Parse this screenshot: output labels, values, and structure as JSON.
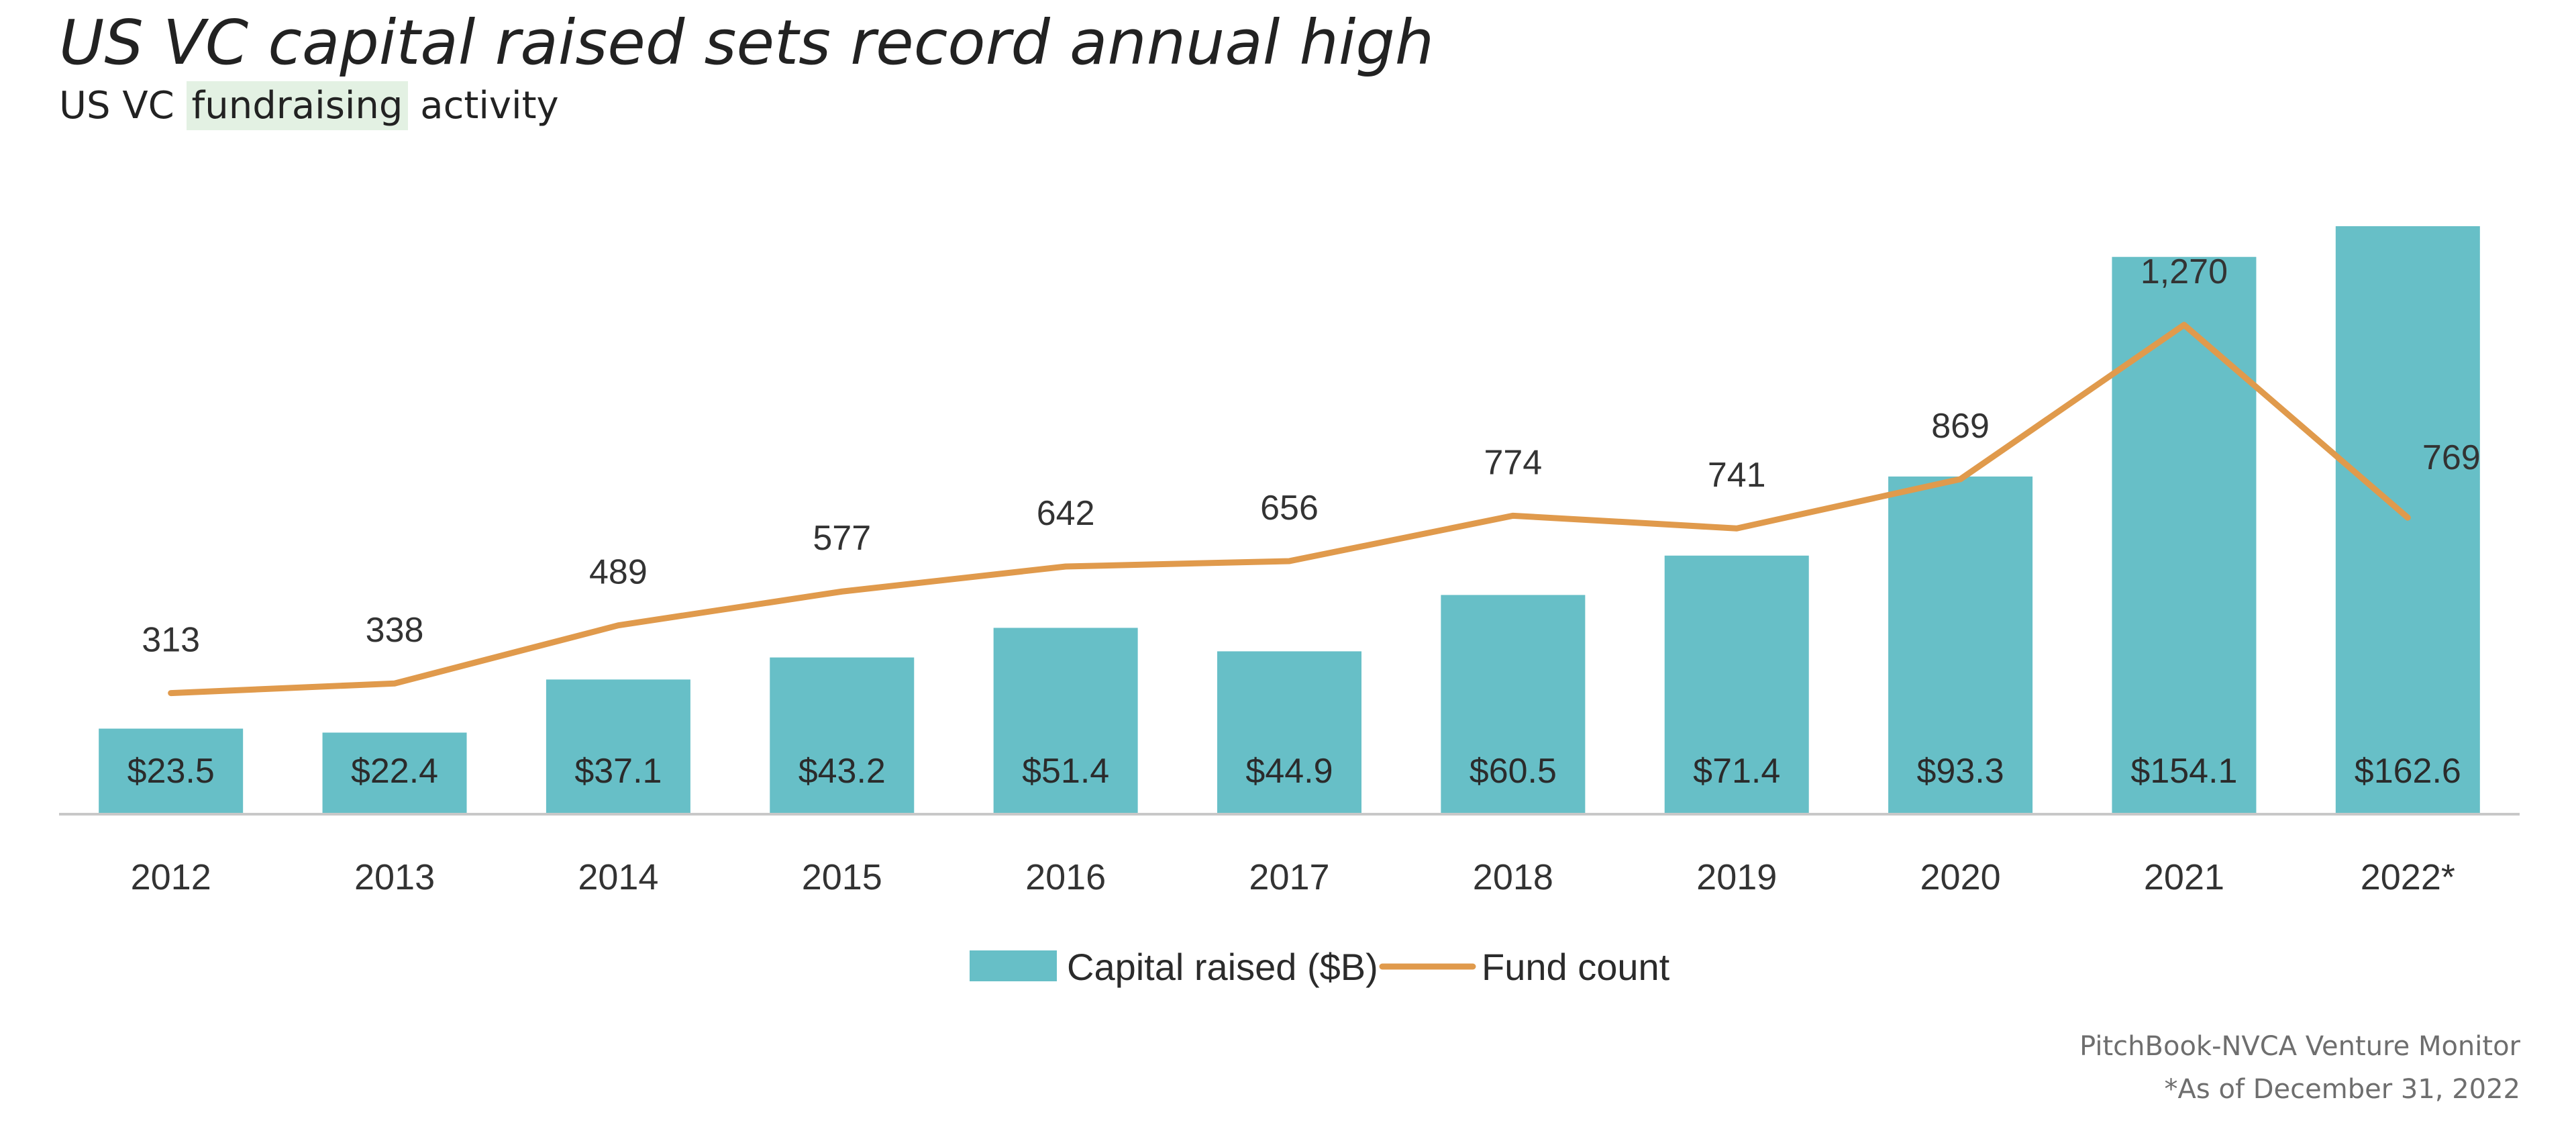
{
  "header": {
    "title": "US VC capital raised sets record annual high",
    "subtitle_prefix": "US VC ",
    "subtitle_highlight": "fundraising",
    "subtitle_suffix": " activity"
  },
  "footer": {
    "source": "PitchBook-NVCA Venture Monitor",
    "note": "*As of December 31, 2022"
  },
  "colors": {
    "bar": "#67bfc7",
    "line": "#e09a4c",
    "axis": "#c8c8c8",
    "highlight": "#e3f1e3"
  },
  "chart_data": {
    "type": "bar",
    "title": "US VC capital raised sets record annual high",
    "subtitle": "US VC fundraising activity",
    "categories": [
      "2012",
      "2013",
      "2014",
      "2015",
      "2016",
      "2017",
      "2018",
      "2019",
      "2020",
      "2021",
      "2022*"
    ],
    "series": [
      {
        "name": "Capital raised ($B)",
        "type": "bar",
        "axis": "left",
        "values": [
          23.5,
          22.4,
          37.1,
          43.2,
          51.4,
          44.9,
          60.5,
          71.4,
          93.3,
          154.1,
          162.6
        ],
        "labels": [
          "$23.5",
          "$22.4",
          "$37.1",
          "$43.2",
          "$51.4",
          "$44.9",
          "$60.5",
          "$71.4",
          "$93.3",
          "$154.1",
          "$162.6"
        ]
      },
      {
        "name": "Fund count",
        "type": "line",
        "axis": "right",
        "values": [
          313,
          338,
          489,
          577,
          642,
          656,
          774,
          741,
          869,
          1270,
          769
        ],
        "labels": [
          "313",
          "338",
          "489",
          "577",
          "642",
          "656",
          "774",
          "741",
          "869",
          "1,270",
          "769"
        ]
      }
    ],
    "ylim_left": [
      0,
      170
    ],
    "ylim_right": [
      0,
      1400
    ],
    "grid": false,
    "legend": "bottom-center"
  }
}
